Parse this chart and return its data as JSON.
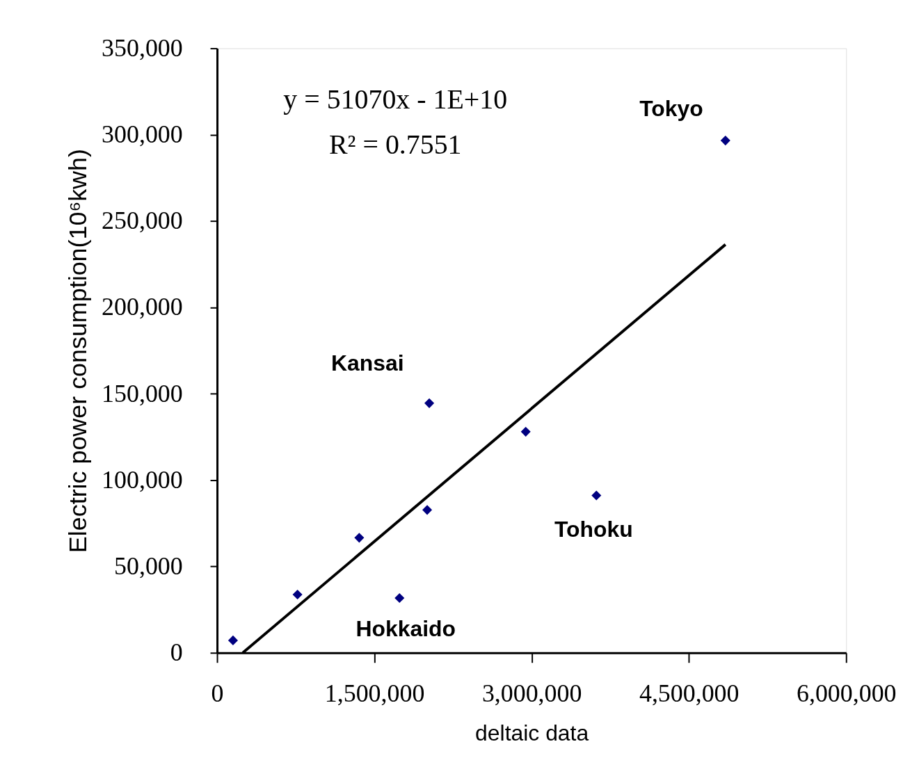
{
  "chart_data": {
    "type": "scatter",
    "xlabel": "deltaic data",
    "ylabel": "Electric power consumption(10⁶kwh)",
    "xlim": [
      0,
      6000000
    ],
    "ylim": [
      0,
      350000
    ],
    "xticks": [
      0,
      {
        "value": 1500000,
        "label": "1,500,000"
      },
      {
        "value": 3000000,
        "label": "3,000,000"
      },
      {
        "value": 4500000,
        "label": "4,500,000"
      },
      {
        "value": 6000000,
        "label": "6,000,000"
      }
    ],
    "yticks": [
      0,
      {
        "value": 50000,
        "label": "50,000"
      },
      {
        "value": 100000,
        "label": "100,000"
      },
      {
        "value": 150000,
        "label": "150,000"
      },
      {
        "value": 200000,
        "label": "200,000"
      },
      {
        "value": 250000,
        "label": "250,000"
      },
      {
        "value": 300000,
        "label": "300,000"
      },
      {
        "value": 350000,
        "label": "350,000"
      }
    ],
    "grid": false,
    "series": [
      {
        "color": "#000080",
        "marker": "diamond",
        "x": [
          152000,
          767000,
          1356000,
          1740000,
          2004000,
          2024000,
          2944000,
          3618000,
          4849000
        ],
        "values": [
          7200,
          33700,
          66600,
          31700,
          82700,
          144500,
          128000,
          91100,
          296600
        ]
      },
      {
        "type": "line",
        "color": "#000000",
        "line_style": "solid",
        "x": [
          245000,
          4849000
        ],
        "values": [
          0,
          236400
        ]
      }
    ],
    "annotations": [
      "y = 51070x - 1E+10",
      "R² = 0.7551",
      "Tokyo",
      "Kansai",
      "Tohoku",
      "Hokkaido"
    ]
  }
}
